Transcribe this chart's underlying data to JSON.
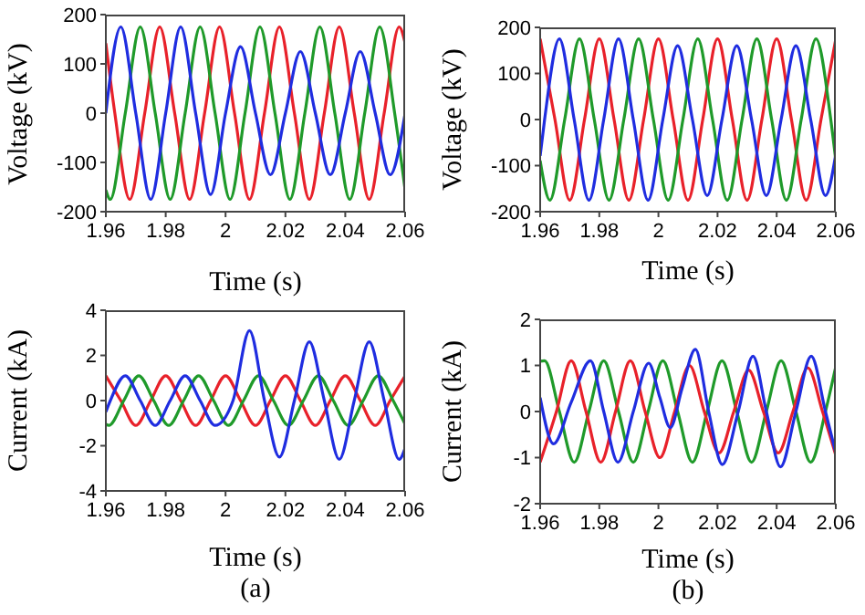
{
  "chart_data": [
    {
      "type": "line",
      "xlabel": "Time (s)",
      "ylabel": "Voltage (kV)",
      "xlim": [
        1.96,
        2.06
      ],
      "xticks": [
        1.96,
        1.98,
        2,
        2.02,
        2.04,
        2.06
      ],
      "ylim": [
        -200,
        200
      ],
      "yticks": [
        -200,
        -100,
        0,
        100,
        200
      ],
      "series": [
        {
          "color": "#e8212a",
          "x": [
            1.96,
            1.963,
            1.968,
            1.973,
            1.978,
            1.983,
            1.988,
            1.993,
            1.998,
            2.003,
            2.008,
            2.013,
            2.018,
            2.023,
            2.028,
            2.033,
            2.038,
            2.043,
            2.048,
            2.053,
            2.058,
            2.06
          ],
          "values": [
            142,
            0,
            -175,
            0,
            175,
            0,
            -175,
            0,
            175,
            0,
            -175,
            0,
            175,
            0,
            -175,
            0,
            175,
            0,
            -175,
            0,
            175,
            142
          ]
        },
        {
          "color": "#1f9a2a",
          "x": [
            1.96,
            1.9615,
            1.9665,
            1.9715,
            1.9765,
            1.9815,
            1.9865,
            1.9915,
            1.9965,
            2.0015,
            2.0065,
            2.0115,
            2.0165,
            2.0215,
            2.0265,
            2.0315,
            2.0365,
            2.0415,
            2.0465,
            2.0515,
            2.0565,
            2.06
          ],
          "values": [
            -156,
            -175,
            0,
            175,
            0,
            -175,
            0,
            175,
            0,
            -175,
            0,
            175,
            0,
            -175,
            0,
            175,
            0,
            -175,
            0,
            175,
            0,
            -156
          ]
        },
        {
          "color": "#1f2de0",
          "x": [
            1.96,
            1.965,
            1.97,
            1.975,
            1.98,
            1.985,
            1.99,
            1.995,
            2.0,
            2.005,
            2.01,
            2.015,
            2.02,
            2.025,
            2.03,
            2.035,
            2.04,
            2.045,
            2.05,
            2.055,
            2.06
          ],
          "values": [
            0,
            175,
            0,
            -175,
            0,
            175,
            0,
            -165,
            0,
            135,
            0,
            -125,
            0,
            125,
            0,
            -125,
            0,
            125,
            0,
            -125,
            0
          ]
        }
      ]
    },
    {
      "type": "line",
      "xlabel": "Time (s)",
      "ylabel": "Voltage (kV)",
      "xlim": [
        1.96,
        2.06
      ],
      "xticks": [
        1.96,
        1.98,
        2,
        2.02,
        2.04,
        2.06
      ],
      "ylim": [
        -200,
        200
      ],
      "yticks": [
        -200,
        -100,
        0,
        100,
        200
      ],
      "series": [
        {
          "color": "#e8212a",
          "x": [
            1.96,
            1.965,
            1.97,
            1.975,
            1.98,
            1.985,
            1.99,
            1.995,
            2.0,
            2.005,
            2.01,
            2.015,
            2.02,
            2.025,
            2.03,
            2.035,
            2.04,
            2.045,
            2.05,
            2.055,
            2.06
          ],
          "values": [
            175,
            0,
            -175,
            0,
            175,
            0,
            -175,
            0,
            175,
            0,
            -175,
            0,
            175,
            0,
            -175,
            0,
            175,
            0,
            -175,
            0,
            175
          ]
        },
        {
          "color": "#1f9a2a",
          "x": [
            1.96,
            1.9633,
            1.9683,
            1.9733,
            1.9783,
            1.9833,
            1.9883,
            1.9933,
            1.9983,
            2.0033,
            2.0083,
            2.0133,
            2.0183,
            2.0233,
            2.0283,
            2.0333,
            2.0383,
            2.0433,
            2.0483,
            2.0533,
            2.0583,
            2.06
          ],
          "values": [
            -89,
            -175,
            0,
            175,
            0,
            -175,
            0,
            175,
            0,
            -175,
            0,
            175,
            0,
            -175,
            0,
            175,
            0,
            -175,
            0,
            175,
            0,
            -89
          ]
        },
        {
          "color": "#1f2de0",
          "x": [
            1.96,
            1.9615,
            1.9665,
            1.9715,
            1.9765,
            1.9815,
            1.9865,
            1.9915,
            1.9965,
            2.0015,
            2.0065,
            2.0115,
            2.0165,
            2.0215,
            2.0265,
            2.0315,
            2.0365,
            2.0415,
            2.0465,
            2.0515,
            2.0565,
            2.06
          ],
          "values": [
            -79,
            0,
            175,
            0,
            -175,
            0,
            175,
            0,
            -175,
            0,
            160,
            0,
            -165,
            0,
            160,
            0,
            -165,
            0,
            160,
            0,
            -165,
            -75
          ]
        }
      ]
    },
    {
      "type": "line",
      "xlabel": "Time (s)",
      "ylabel": "Current (kA)",
      "xlim": [
        1.96,
        2.06
      ],
      "xticks": [
        1.96,
        1.98,
        2,
        2.02,
        2.04,
        2.06
      ],
      "ylim": [
        -4,
        4
      ],
      "yticks": [
        -4,
        -2,
        0,
        2,
        4
      ],
      "annotations": [
        "(a)"
      ],
      "series": [
        {
          "color": "#e8212a",
          "x": [
            1.96,
            1.965,
            1.97,
            1.975,
            1.98,
            1.985,
            1.99,
            1.995,
            2.0,
            2.005,
            2.01,
            2.015,
            2.02,
            2.025,
            2.03,
            2.035,
            2.04,
            2.045,
            2.05,
            2.055,
            2.06
          ],
          "values": [
            1.1,
            0,
            -1.1,
            0,
            1.1,
            0,
            -1.1,
            0,
            1.1,
            0,
            -1.1,
            0,
            1.1,
            0,
            -1.1,
            0,
            1.1,
            0,
            -1.1,
            0,
            1.1
          ]
        },
        {
          "color": "#1f9a2a",
          "x": [
            1.96,
            1.961,
            1.966,
            1.971,
            1.976,
            1.981,
            1.986,
            1.991,
            1.996,
            2.001,
            2.006,
            2.011,
            2.016,
            2.021,
            2.026,
            2.031,
            2.036,
            2.041,
            2.046,
            2.051,
            2.056,
            2.06
          ],
          "values": [
            -1.05,
            -1.1,
            0,
            1.1,
            0,
            -1.1,
            0,
            1.1,
            0,
            -1.1,
            0,
            1.1,
            0,
            -1.1,
            0,
            1.1,
            0,
            -1.1,
            0,
            1.1,
            0,
            -1.05
          ]
        },
        {
          "color": "#1f2de0",
          "x": [
            1.96,
            1.9615,
            1.9665,
            1.9715,
            1.9765,
            1.9815,
            1.9865,
            1.9915,
            1.9965,
            2.0025,
            2.008,
            2.013,
            2.018,
            2.023,
            2.028,
            2.033,
            2.038,
            2.043,
            2.048,
            2.053,
            2.058,
            2.06
          ],
          "values": [
            -0.5,
            0,
            1.1,
            0,
            -1.1,
            0,
            1.1,
            0,
            -1.1,
            0,
            3.1,
            0,
            -2.5,
            0,
            2.6,
            0,
            -2.6,
            0,
            2.6,
            0,
            -2.6,
            -2.1
          ]
        }
      ]
    },
    {
      "type": "line",
      "xlabel": "Time (s)",
      "ylabel": "Current (kA)",
      "xlim": [
        1.96,
        2.06
      ],
      "xticks": [
        1.96,
        1.98,
        2,
        2.02,
        2.04,
        2.06
      ],
      "ylim": [
        -2,
        2
      ],
      "yticks": [
        -2,
        -1,
        0,
        1,
        2
      ],
      "annotations": [
        "(b)"
      ],
      "series": [
        {
          "color": "#1f9a2a",
          "x": [
            1.96,
            1.9615,
            1.9665,
            1.9715,
            1.9765,
            1.9815,
            1.9865,
            1.9915,
            1.9965,
            2.0015,
            2.0065,
            2.0115,
            2.0165,
            2.0215,
            2.0265,
            2.0315,
            2.0365,
            2.0415,
            2.0465,
            2.0515,
            2.0565,
            2.06
          ],
          "values": [
            1.09,
            1.1,
            0,
            -1.1,
            0,
            1.1,
            0,
            -1.1,
            0,
            1.1,
            0,
            -1.1,
            0,
            1.1,
            0,
            -1.1,
            0,
            1.1,
            0,
            -1.1,
            0,
            0.98
          ]
        },
        {
          "color": "#e8212a",
          "x": [
            1.96,
            1.9655,
            1.9705,
            1.9755,
            1.9805,
            1.9855,
            1.9905,
            1.9955,
            2.0005,
            2.0055,
            2.0105,
            2.0155,
            2.0205,
            2.0255,
            2.0305,
            2.0355,
            2.0405,
            2.0455,
            2.0505,
            2.0555,
            2.06
          ],
          "values": [
            -1.1,
            0,
            1.1,
            0,
            -1.1,
            0,
            1.1,
            0,
            -1.0,
            0,
            1.0,
            0,
            -0.9,
            0,
            0.9,
            0,
            -0.9,
            0,
            0.95,
            0,
            -0.95
          ]
        },
        {
          "color": "#1f2de0",
          "x": [
            1.96,
            1.9645,
            1.9705,
            1.977,
            1.9815,
            1.9863,
            1.9915,
            1.9967,
            2.0005,
            2.004,
            2.008,
            2.0125,
            2.017,
            2.0216,
            2.027,
            2.032,
            2.0365,
            2.0413,
            2.0465,
            2.0517,
            2.0565,
            2.06
          ],
          "values": [
            0.3,
            -0.7,
            0.2,
            1.1,
            0,
            -1.1,
            0,
            1.05,
            0.3,
            -0.35,
            0.5,
            1.35,
            0,
            -1.15,
            0,
            1.2,
            0,
            -1.2,
            0,
            1.2,
            0,
            -0.9
          ]
        }
      ]
    }
  ]
}
